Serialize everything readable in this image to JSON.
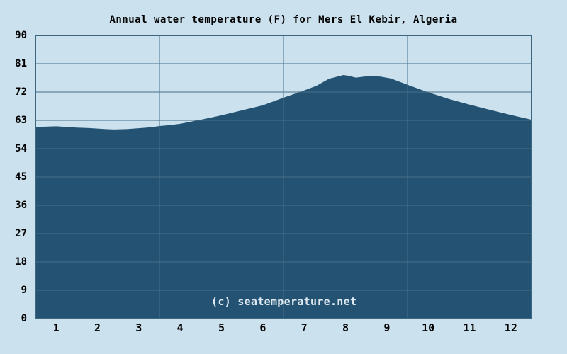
{
  "title": "Annual water temperature (F) for Mers El Kebir, Algeria",
  "watermark": "(c) seatemperature.net",
  "colors": {
    "page_bg": "#cbe1ed",
    "area_fill": "#235272",
    "grid": "#4a7089",
    "border": "#3c657f",
    "title_text": "#000000",
    "tick_text": "#000000",
    "watermark_text": "#dfe9f1"
  },
  "chart_data": {
    "type": "area",
    "title": "Annual water temperature (F) for Mers El Kebir, Algeria",
    "xlabel": "",
    "ylabel": "",
    "unit": "F",
    "grid": true,
    "legend": false,
    "ylim": [
      0,
      90
    ],
    "xlim_months": [
      0,
      12
    ],
    "y_ticks": [
      90,
      81,
      72,
      63,
      54,
      45,
      36,
      27,
      18,
      9,
      0
    ],
    "x_ticks": [
      "1",
      "2",
      "3",
      "4",
      "5",
      "6",
      "7",
      "8",
      "9",
      "10",
      "11",
      "12"
    ],
    "monthly_values_f": [
      61.0,
      60.4,
      60.6,
      61.9,
      64.6,
      67.8,
      72.5,
      77.0,
      76.4,
      71.9,
      67.9,
      64.7
    ],
    "curve_points": [
      [
        0.0,
        60.9
      ],
      [
        0.25,
        61.0
      ],
      [
        0.5,
        61.1
      ],
      [
        0.75,
        60.9
      ],
      [
        1.0,
        60.7
      ],
      [
        1.25,
        60.6
      ],
      [
        1.5,
        60.4
      ],
      [
        1.7,
        60.2
      ],
      [
        1.9,
        60.1
      ],
      [
        2.2,
        60.2
      ],
      [
        2.5,
        60.5
      ],
      [
        2.8,
        60.8
      ],
      [
        3.0,
        61.2
      ],
      [
        3.25,
        61.5
      ],
      [
        3.5,
        61.9
      ],
      [
        4.0,
        63.2
      ],
      [
        4.5,
        64.6
      ],
      [
        5.0,
        66.2
      ],
      [
        5.5,
        67.8
      ],
      [
        6.0,
        70.2
      ],
      [
        6.5,
        72.5
      ],
      [
        6.8,
        74.0
      ],
      [
        7.1,
        76.2
      ],
      [
        7.45,
        77.4
      ],
      [
        7.55,
        77.2
      ],
      [
        7.75,
        76.6
      ],
      [
        8.1,
        77.1
      ],
      [
        8.35,
        76.9
      ],
      [
        8.6,
        76.3
      ],
      [
        9.0,
        74.3
      ],
      [
        9.5,
        71.9
      ],
      [
        10.0,
        69.8
      ],
      [
        10.5,
        68.0
      ],
      [
        11.0,
        66.3
      ],
      [
        11.5,
        64.7
      ],
      [
        12.0,
        63.2
      ]
    ]
  }
}
